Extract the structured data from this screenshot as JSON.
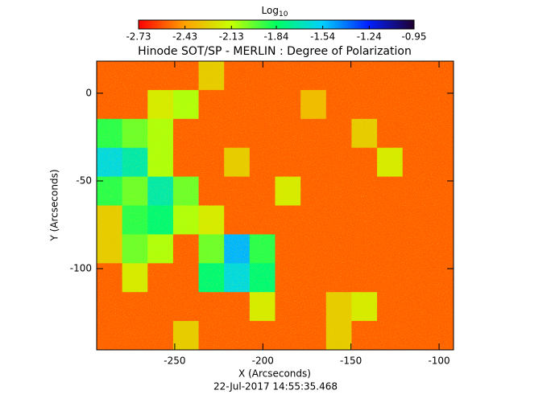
{
  "chart_data": {
    "type": "heatmap",
    "title": "Hinode SOT/SP - MERLIN : Degree of Polarization",
    "x_label": "X (Arcseconds)",
    "y_label": "Y (Arcseconds)",
    "annotation": "22-Jul-2017 14:55:35.468",
    "colorbar_label": "Log",
    "colorbar_label_sub": "10",
    "clim": [
      -2.73,
      -0.95
    ],
    "cticks": [
      -2.73,
      -2.43,
      -2.13,
      -1.84,
      -1.54,
      -1.24,
      -0.95
    ],
    "colormap": [
      "#ff0000",
      "#ffa000",
      "#c8ff00",
      "#00ff60",
      "#00d0ff",
      "#0020ff",
      "#200030"
    ],
    "xlim": [
      -294.3,
      -91.8
    ],
    "ylim": [
      -146.3,
      18.3
    ],
    "xticks": [
      -250,
      -200,
      -150,
      -100
    ],
    "yticks": [
      -100,
      -50,
      0
    ],
    "z": [
      [
        -2.55,
        -2.55,
        -2.55,
        -2.55,
        -2.3,
        -2.55,
        -2.55,
        -2.55,
        -2.55,
        -2.55,
        -2.55,
        -2.55,
        -2.55,
        -2.55
      ],
      [
        -2.55,
        -2.55,
        -2.2,
        -2.1,
        -2.55,
        -2.55,
        -2.55,
        -2.55,
        -2.35,
        -2.55,
        -2.55,
        -2.55,
        -2.55,
        -2.55
      ],
      [
        -1.9,
        -2.0,
        -2.1,
        -2.55,
        -2.55,
        -2.55,
        -2.55,
        -2.55,
        -2.55,
        -2.55,
        -2.3,
        -2.55,
        -2.55,
        -2.55
      ],
      [
        -1.6,
        -1.7,
        -2.1,
        -2.55,
        -2.55,
        -2.3,
        -2.55,
        -2.55,
        -2.55,
        -2.55,
        -2.55,
        -2.2,
        -2.55,
        -2.55
      ],
      [
        -1.9,
        -2.0,
        -1.7,
        -2.0,
        -2.55,
        -2.55,
        -2.55,
        -2.2,
        -2.55,
        -2.55,
        -2.55,
        -2.55,
        -2.55,
        -2.55
      ],
      [
        -2.3,
        -1.9,
        -1.8,
        -2.1,
        -2.2,
        -2.55,
        -2.55,
        -2.55,
        -2.55,
        -2.55,
        -2.55,
        -2.55,
        -2.55,
        -2.55
      ],
      [
        -2.3,
        -2.0,
        -2.1,
        -2.55,
        -2.0,
        -1.5,
        -1.9,
        -2.55,
        -2.55,
        -2.55,
        -2.55,
        -2.55,
        -2.55,
        -2.55
      ],
      [
        -2.55,
        -2.2,
        -2.55,
        -2.55,
        -1.8,
        -1.6,
        -1.8,
        -2.55,
        -2.55,
        -2.55,
        -2.55,
        -2.55,
        -2.55,
        -2.55
      ],
      [
        -2.55,
        -2.55,
        -2.55,
        -2.55,
        -2.55,
        -2.55,
        -2.2,
        -2.55,
        -2.55,
        -2.3,
        -2.2,
        -2.55,
        -2.55,
        -2.55
      ],
      [
        -2.55,
        -2.55,
        -2.55,
        -2.3,
        -2.55,
        -2.55,
        -2.55,
        -2.55,
        -2.55,
        -2.3,
        -2.55,
        -2.55,
        -2.55,
        -2.55
      ]
    ]
  }
}
